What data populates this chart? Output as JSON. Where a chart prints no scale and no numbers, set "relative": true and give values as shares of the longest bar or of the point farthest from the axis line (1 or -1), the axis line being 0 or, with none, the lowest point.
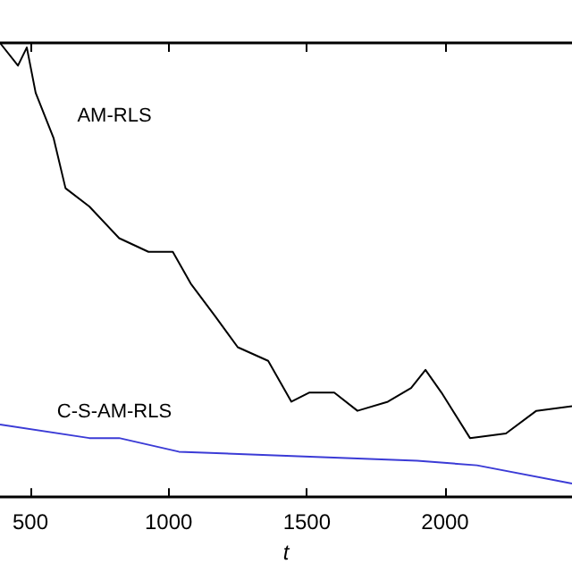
{
  "chart_data": {
    "type": "line",
    "xlabel": "t",
    "relative": true,
    "xlim": [
      390,
      2459
    ],
    "xticks": [
      500,
      1000,
      1500,
      2000
    ],
    "legend": false,
    "grid": false,
    "marker": "none",
    "line_style": "solid",
    "series": [
      {
        "name": "AM-RLS",
        "color": "#000000",
        "x": [
          390,
          455,
          487,
          519,
          584,
          627,
          713,
          821,
          927,
          1015,
          1080,
          1166,
          1250,
          1360,
          1444,
          1508,
          1599,
          1683,
          1793,
          1877,
          1929,
          1987,
          2090,
          2220,
          2330,
          2459
        ],
        "values": [
          1,
          0.95,
          0.99,
          0.89,
          0.79,
          0.68,
          0.64,
          0.57,
          0.54,
          0.54,
          0.47,
          0.4,
          0.33,
          0.3,
          0.21,
          0.23,
          0.23,
          0.19,
          0.21,
          0.24,
          0.28,
          0.23,
          0.13,
          0.14,
          0.19,
          0.2
        ]
      },
      {
        "name": "C-S-AM-RLS",
        "color": "#3b3bd6",
        "x": [
          390,
          713,
          821,
          1037,
          1468,
          1899,
          2115,
          2459
        ],
        "values": [
          0.16,
          0.13,
          0.13,
          0.1,
          0.09,
          0.08,
          0.07,
          0.03
        ]
      }
    ]
  }
}
